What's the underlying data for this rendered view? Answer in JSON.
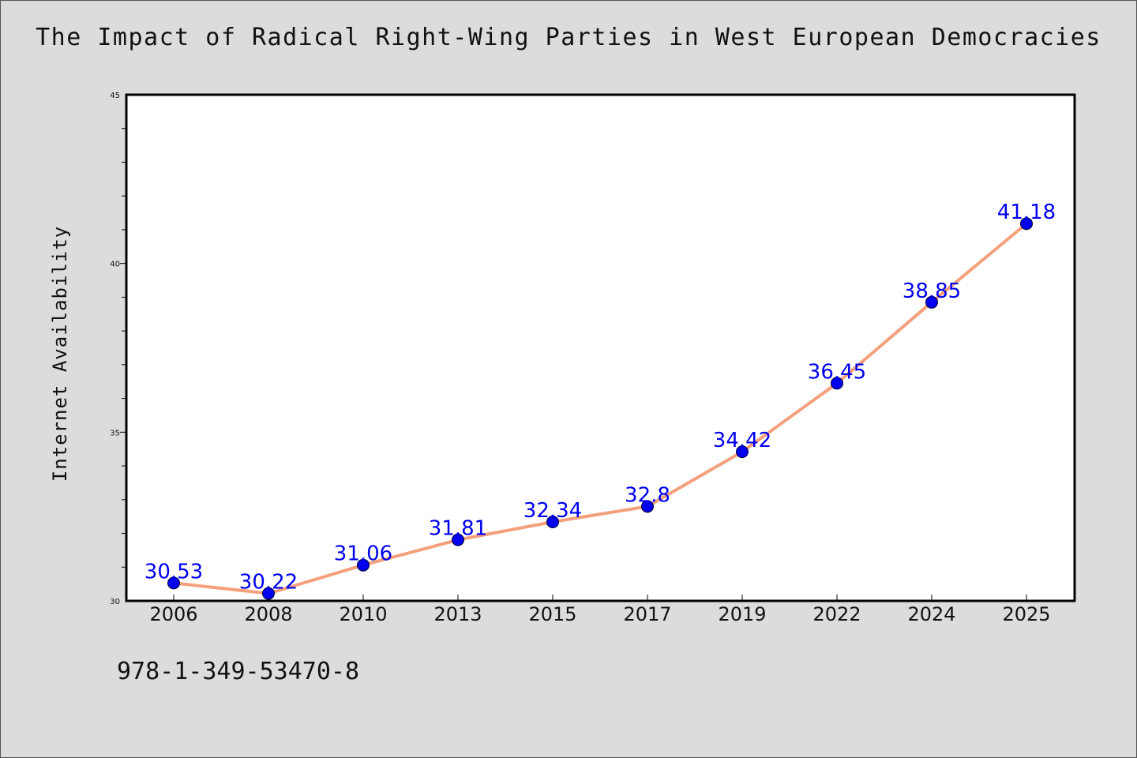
{
  "chart_data": {
    "type": "line",
    "title": "The Impact of Radical Right-Wing Parties in West European Democracies",
    "xlabel": "",
    "ylabel": "Internet Availability",
    "categories": [
      "2006",
      "2008",
      "2010",
      "2013",
      "2015",
      "2017",
      "2019",
      "2022",
      "2024",
      "2025"
    ],
    "series": [
      {
        "values": [
          30.53,
          30.22,
          31.06,
          31.81,
          32.34,
          32.8,
          34.42,
          36.45,
          38.85,
          41.18
        ],
        "labels": [
          "30.53",
          "30.22",
          "31.06",
          "31.81",
          "32.34",
          "32.8",
          "34.42",
          "36.45",
          "38.85",
          "41.18"
        ]
      }
    ],
    "ylim": [
      30,
      45
    ],
    "yticks": [
      "30",
      "35",
      "40",
      "45"
    ],
    "grid": false,
    "line_color": "#f4a07c",
    "marker_color": "#0000ee",
    "label_color": "#0000ee"
  },
  "footer": {
    "isbn": "978-1-349-53470-8"
  }
}
